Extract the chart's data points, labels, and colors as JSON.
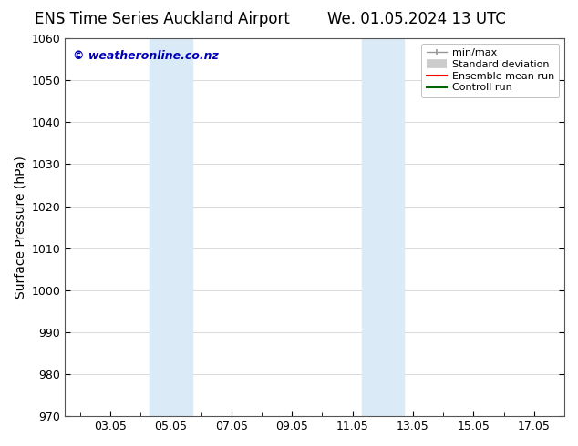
{
  "title_left": "ENS Time Series Auckland Airport",
  "title_right": "We. 01.05.2024 13 UTC",
  "ylabel": "Surface Pressure (hPa)",
  "ylim": [
    970,
    1060
  ],
  "yticks": [
    970,
    980,
    990,
    1000,
    1010,
    1020,
    1030,
    1040,
    1050,
    1060
  ],
  "xlim": [
    1.5,
    18.0
  ],
  "xtick_labels": [
    "03.05",
    "05.05",
    "07.05",
    "09.05",
    "11.05",
    "13.05",
    "15.05",
    "17.05"
  ],
  "xtick_positions": [
    3,
    5,
    7,
    9,
    11,
    13,
    15,
    17
  ],
  "shaded_regions": [
    {
      "x_start": 4.3,
      "x_end": 5.7,
      "color": "#daeaf7"
    },
    {
      "x_start": 11.3,
      "x_end": 12.7,
      "color": "#daeaf7"
    }
  ],
  "watermark_text": "© weatheronline.co.nz",
  "watermark_color": "#0000bb",
  "background_color": "#ffffff",
  "legend_items": [
    {
      "label": "min/max",
      "color": "#999999",
      "type": "errorbar"
    },
    {
      "label": "Standard deviation",
      "color": "#cccccc",
      "type": "thick"
    },
    {
      "label": "Ensemble mean run",
      "color": "#ff0000",
      "type": "line"
    },
    {
      "label": "Controll run",
      "color": "#006600",
      "type": "line"
    }
  ],
  "grid_color": "#cccccc",
  "grid_linestyle": "-",
  "title_fontsize": 12,
  "axis_label_fontsize": 10,
  "tick_fontsize": 9,
  "legend_fontsize": 8
}
